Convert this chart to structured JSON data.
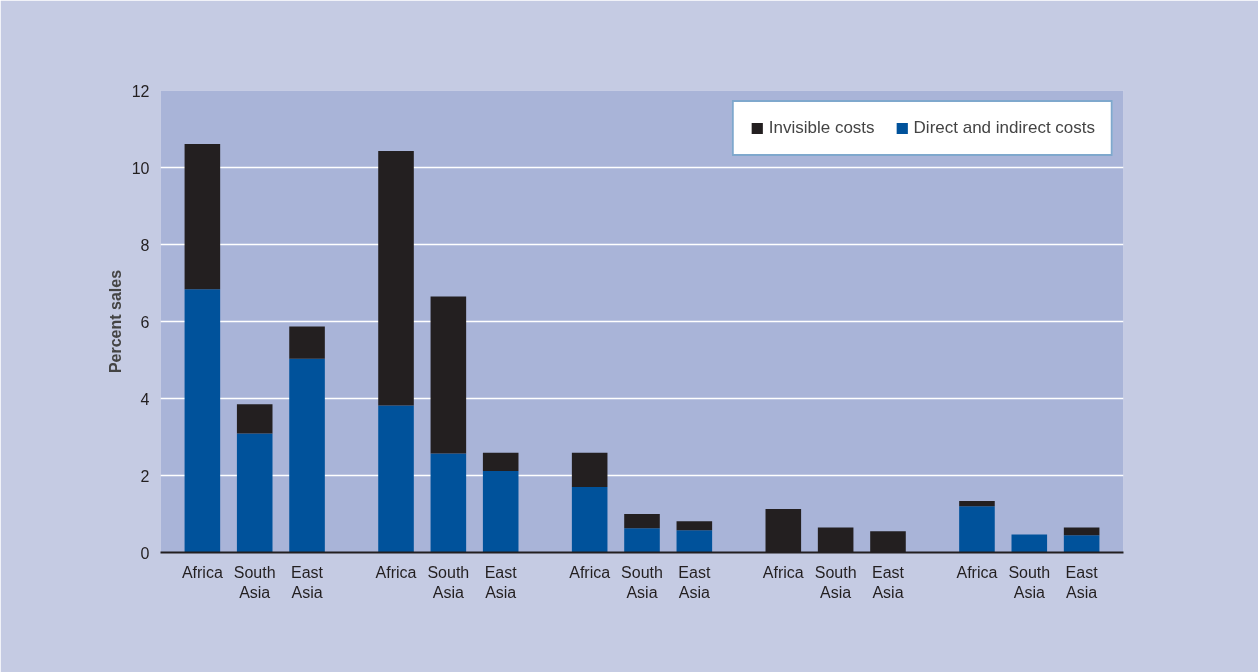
{
  "chart_data": {
    "type": "bar",
    "stacked": true,
    "ylabel": "Percent sales",
    "categories": [
      "Africa",
      "South Asia",
      "East Asia",
      "Africa",
      "South Asia",
      "East Asia",
      "Africa",
      "South Asia",
      "East Asia",
      "Africa",
      "South Asia",
      "East Asia",
      "Africa",
      "South Asia",
      "East Asia"
    ],
    "series": [
      {
        "name": "Direct and indirect costs",
        "color": "#00529b",
        "values": [
          6.84,
          3.09,
          5.03,
          3.82,
          2.57,
          2.12,
          1.7,
          0.63,
          0.58,
          0,
          0,
          0,
          1.2,
          0.47,
          0.45
        ]
      },
      {
        "name": "Invisible costs",
        "color": "#231f20",
        "values": [
          3.77,
          0.76,
          0.84,
          6.61,
          4.08,
          0.47,
          0.89,
          0.37,
          0.23,
          1.13,
          0.65,
          0.55,
          0.14,
          0,
          0.2
        ]
      }
    ],
    "ylim": [
      0,
      12
    ],
    "yticks": [
      0,
      2,
      4,
      6,
      8,
      10,
      12
    ],
    "grid": "y",
    "legend": "top right"
  }
}
